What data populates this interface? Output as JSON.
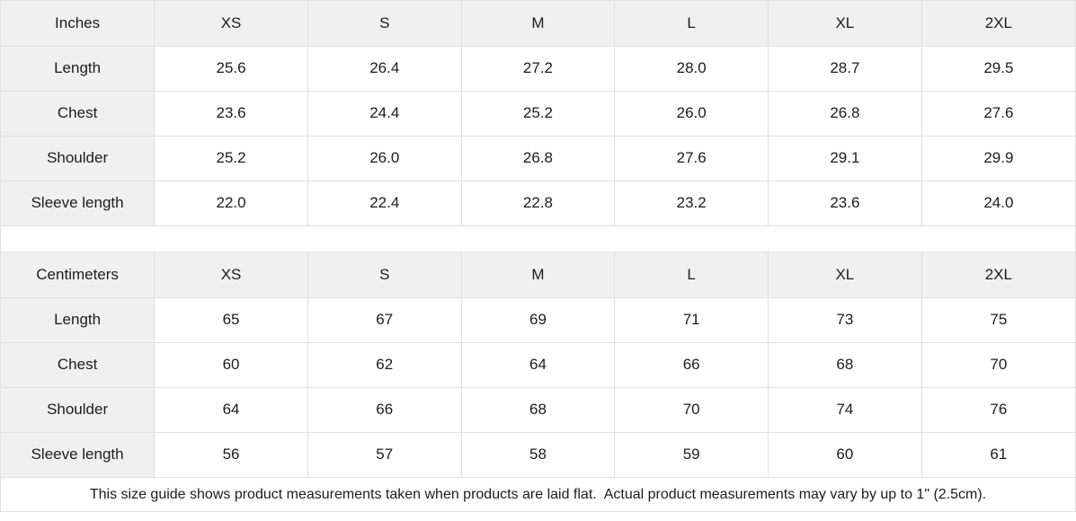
{
  "chart_data": [
    {
      "type": "table",
      "unit": "Inches",
      "sizes": [
        "XS",
        "S",
        "M",
        "L",
        "XL",
        "2XL"
      ],
      "rows": [
        {
          "label": "Length",
          "values": [
            "25.6",
            "26.4",
            "27.2",
            "28.0",
            "28.7",
            "29.5"
          ]
        },
        {
          "label": "Chest",
          "values": [
            "23.6",
            "24.4",
            "25.2",
            "26.0",
            "26.8",
            "27.6"
          ]
        },
        {
          "label": "Shoulder",
          "values": [
            "25.2",
            "26.0",
            "26.8",
            "27.6",
            "29.1",
            "29.9"
          ]
        },
        {
          "label": "Sleeve length",
          "values": [
            "22.0",
            "22.4",
            "22.8",
            "23.2",
            "23.6",
            "24.0"
          ]
        }
      ]
    },
    {
      "type": "table",
      "unit": "Centimeters",
      "sizes": [
        "XS",
        "S",
        "M",
        "L",
        "XL",
        "2XL"
      ],
      "rows": [
        {
          "label": "Length",
          "values": [
            "65",
            "67",
            "69",
            "71",
            "73",
            "75"
          ]
        },
        {
          "label": "Chest",
          "values": [
            "60",
            "62",
            "64",
            "66",
            "68",
            "70"
          ]
        },
        {
          "label": "Shoulder",
          "values": [
            "64",
            "66",
            "68",
            "70",
            "74",
            "76"
          ]
        },
        {
          "label": "Sleeve length",
          "values": [
            "56",
            "57",
            "58",
            "59",
            "60",
            "61"
          ]
        }
      ]
    }
  ],
  "footer": {
    "note": "This size guide shows product measurements taken when products are laid flat.  Actual product measurements may vary by up to 1\" (2.5cm)."
  },
  "colors": {
    "header_bg": "#f0f0f0",
    "border": "#e0e0e0",
    "text": "#1c1c1c"
  }
}
